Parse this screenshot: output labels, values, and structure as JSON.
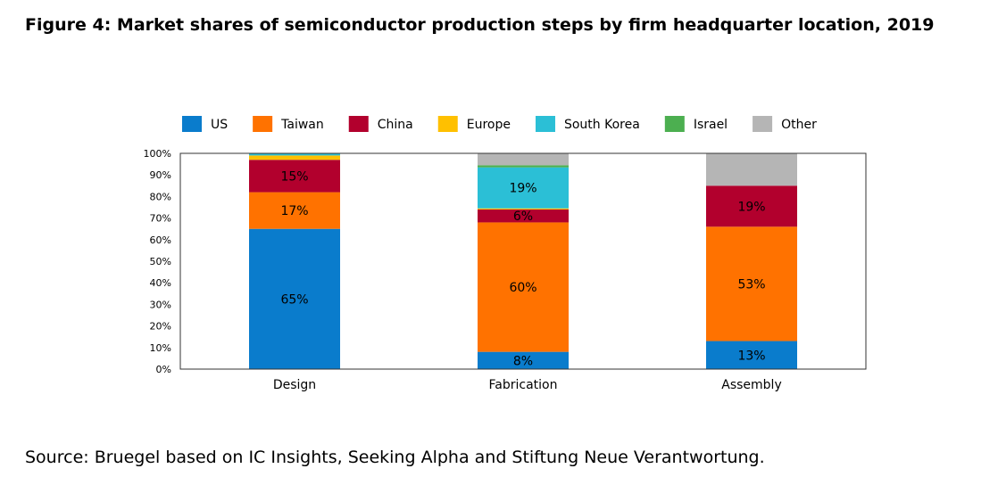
{
  "title": "Figure 4: Market shares of semiconductor production steps by firm headquarter location, 2019",
  "source": "Source: Bruegel based on IC Insights, Seeking Alpha and Stiftung Neue Verantwortung.",
  "chart_data": {
    "type": "bar",
    "stacked": true,
    "categories": [
      "Design",
      "Fabrication",
      "Assembly"
    ],
    "ylim": [
      0,
      100
    ],
    "yticks": [
      "0%",
      "10%",
      "20%",
      "30%",
      "40%",
      "50%",
      "60%",
      "70%",
      "80%",
      "90%",
      "100%"
    ],
    "legend_position": "top",
    "grid": false,
    "series": [
      {
        "name": "US",
        "color": "#0a7ccc",
        "values": [
          65,
          8,
          13
        ],
        "labels": [
          "65%",
          "8%",
          "13%"
        ]
      },
      {
        "name": "Taiwan",
        "color": "#ff7200",
        "values": [
          17,
          60,
          53
        ],
        "labels": [
          "17%",
          "60%",
          "53%"
        ]
      },
      {
        "name": "China",
        "color": "#b2002d",
        "values": [
          15,
          6,
          19
        ],
        "labels": [
          "15%",
          "6%",
          "19%"
        ]
      },
      {
        "name": "Europe",
        "color": "#ffc000",
        "values": [
          2,
          0.5,
          0
        ],
        "labels": [
          "",
          "",
          ""
        ]
      },
      {
        "name": "South Korea",
        "color": "#2bbfd6",
        "values": [
          1,
          19,
          0
        ],
        "labels": [
          "",
          "19%",
          ""
        ]
      },
      {
        "name": "Israel",
        "color": "#4caf50",
        "values": [
          0,
          1,
          0
        ],
        "labels": [
          "",
          "",
          ""
        ]
      },
      {
        "name": "Other",
        "color": "#b5b5b5",
        "values": [
          0,
          5.5,
          15
        ],
        "labels": [
          "",
          "",
          ""
        ]
      }
    ]
  }
}
